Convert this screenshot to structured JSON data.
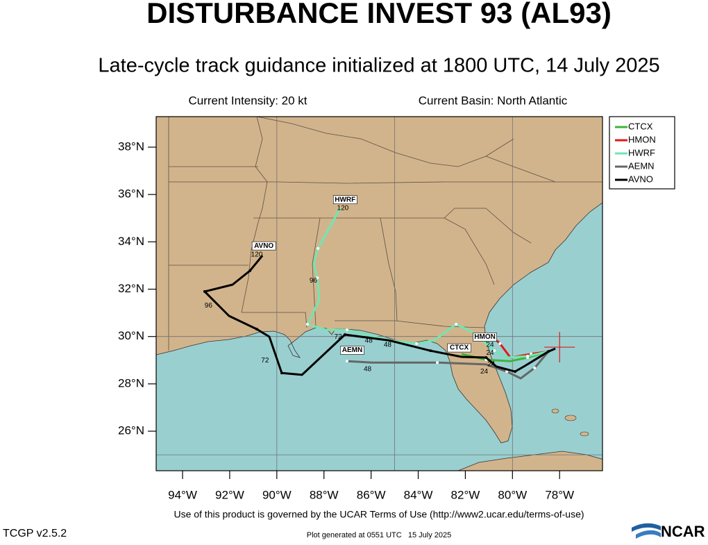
{
  "header": {
    "title": "DISTURBANCE INVEST 93 (AL93)",
    "subtitle": "Late-cycle track guidance initialized at 1800 UTC, 14 July 2025",
    "intensity": "Current Intensity: 20 kt",
    "basin": "Current Basin: North Atlantic"
  },
  "map": {
    "lon_range": [
      -95.12,
      -76.18
    ],
    "lat_range": [
      24.33,
      39.29
    ],
    "lat_ticks": [
      {
        "value": 38,
        "label": "38°N"
      },
      {
        "value": 36,
        "label": "36°N"
      },
      {
        "value": 34,
        "label": "34°N"
      },
      {
        "value": 32,
        "label": "32°N"
      },
      {
        "value": 30,
        "label": "30°N"
      },
      {
        "value": 28,
        "label": "28°N"
      },
      {
        "value": 26,
        "label": "26°N"
      }
    ],
    "lon_ticks": [
      {
        "value": -94,
        "label": "94°W"
      },
      {
        "value": -92,
        "label": "92°W"
      },
      {
        "value": -90,
        "label": "90°W"
      },
      {
        "value": -88,
        "label": "88°W"
      },
      {
        "value": -86,
        "label": "86°W"
      },
      {
        "value": -84,
        "label": "84°W"
      },
      {
        "value": -82,
        "label": "82°W"
      },
      {
        "value": -80,
        "label": "80°W"
      },
      {
        "value": -78,
        "label": "78°W"
      }
    ],
    "grid_lon": [
      -90,
      -85,
      -80
    ],
    "grid_lat": [
      30,
      25
    ]
  },
  "tracks": [
    {
      "name": "CTCX",
      "color": "#3cb43c",
      "lon": [
        -78.47,
        -79.36,
        -80.09,
        -81.12,
        -82.16
      ],
      "lat": [
        29.37,
        29.11,
        28.96,
        29.02,
        29.26
      ]
    },
    {
      "name": "HMON",
      "color": "#e01818",
      "lon": [
        -78.47,
        -79.21,
        -80.09,
        -80.53,
        -80.68
      ],
      "lat": [
        29.37,
        29.26,
        29.11,
        29.7,
        29.84
      ]
    },
    {
      "name": "HWRF",
      "color": "#70e6b4",
      "lon": [
        -78.47,
        -79.36,
        -80.24,
        -80.77,
        -81.71,
        -82.39,
        -83.33,
        -84.07,
        -85.25,
        -87.02,
        -87.9,
        -88.7,
        -88.2,
        -88.28,
        -88.43,
        -88.25,
        -87.31
      ],
      "lat": [
        29.37,
        29.17,
        29.11,
        29.4,
        30.19,
        30.52,
        29.84,
        29.7,
        29.84,
        30.28,
        30.28,
        30.52,
        31.54,
        32.48,
        33.07,
        33.72,
        35.42
      ]
    },
    {
      "name": "AEMN",
      "color": "#666666",
      "lon": [
        -78.47,
        -79.06,
        -79.65,
        -80.24,
        -81.12,
        -83.19,
        -85.96,
        -87.02
      ],
      "lat": [
        29.37,
        28.67,
        28.23,
        28.52,
        28.82,
        28.9,
        28.9,
        28.96
      ]
    },
    {
      "name": "AVNO",
      "color": "#000000",
      "lon": [
        -78.18,
        -78.47,
        -79.47,
        -79.89,
        -80.68,
        -81.12,
        -82.16,
        -83.48,
        -85.25,
        -87.11,
        -88.93,
        -89.79,
        -90.32,
        -90.85,
        -92.03,
        -93.06,
        -91.88,
        -91.14,
        -90.61
      ],
      "lat": [
        29.49,
        29.37,
        28.76,
        28.52,
        28.73,
        29.11,
        29.14,
        29.4,
        29.84,
        30.08,
        28.38,
        28.46,
        29.99,
        30.31,
        30.87,
        31.9,
        32.19,
        32.78,
        33.42
      ]
    }
  ],
  "labels": [
    {
      "text": "HWRF",
      "lon": -87.1,
      "lat": 35.78,
      "boxed": true
    },
    {
      "text": "120",
      "lon": -87.2,
      "lat": 35.42,
      "boxed": false
    },
    {
      "text": "AVNO",
      "lon": -90.55,
      "lat": 33.83,
      "boxed": true
    },
    {
      "text": "120",
      "lon": -90.85,
      "lat": 33.45,
      "boxed": false
    },
    {
      "text": "96",
      "lon": -88.45,
      "lat": 32.35,
      "boxed": false
    },
    {
      "text": "96",
      "lon": -92.9,
      "lat": 31.3,
      "boxed": false
    },
    {
      "text": "72",
      "lon": -87.4,
      "lat": 29.98,
      "boxed": false
    },
    {
      "text": "72",
      "lon": -90.5,
      "lat": 28.98,
      "boxed": false
    },
    {
      "text": "AEMN",
      "lon": -86.8,
      "lat": 29.42,
      "boxed": true
    },
    {
      "text": "48",
      "lon": -85.3,
      "lat": 29.65,
      "boxed": false
    },
    {
      "text": "48",
      "lon": -86.1,
      "lat": 29.82,
      "boxed": false
    },
    {
      "text": "48",
      "lon": -86.15,
      "lat": 28.62,
      "boxed": false
    },
    {
      "text": "CTCX",
      "lon": -82.26,
      "lat": 29.52,
      "boxed": true
    },
    {
      "text": "HMON",
      "lon": -81.17,
      "lat": 29.98,
      "boxed": true
    },
    {
      "text": "24",
      "lon": -80.95,
      "lat": 29.65,
      "boxed": false
    },
    {
      "text": "24",
      "lon": -80.95,
      "lat": 29.3,
      "boxed": false
    },
    {
      "text": "24",
      "lon": -80.9,
      "lat": 28.82,
      "boxed": false
    },
    {
      "text": "24",
      "lon": -81.2,
      "lat": 28.52,
      "boxed": false
    }
  ],
  "storm": {
    "lon": -78.0,
    "lat": 29.55
  },
  "footer": {
    "terms": "Use of this product is governed by the UCAR Terms of Use (http://www2.ucar.edu/terms-of-use)",
    "version": "TCGP v2.5.2",
    "generated": "Plot generated at 0551 UTC   15 July 2025",
    "logo": "NCAR"
  }
}
